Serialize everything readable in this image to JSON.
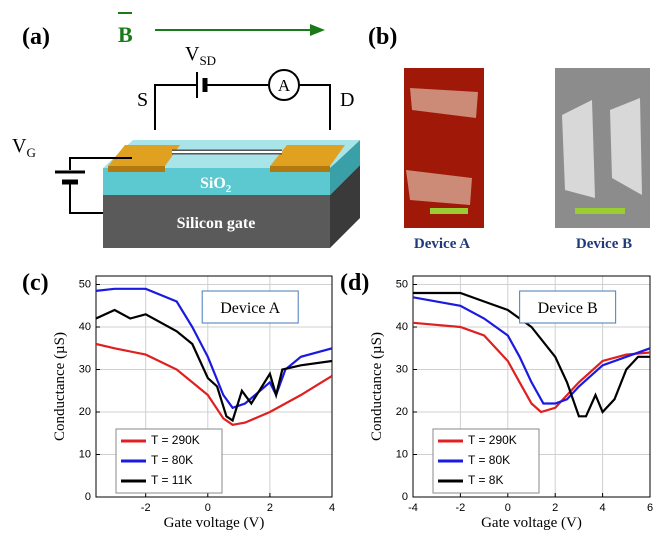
{
  "panel_labels": [
    "(a)",
    "(b)",
    "(c)",
    "(d)"
  ],
  "diagram": {
    "field": "B",
    "source_drain_voltage": {
      "main": "V",
      "sub": "SD"
    },
    "ammeter": "A",
    "source": "S",
    "drain": "D",
    "gate_voltage": {
      "main": "V",
      "sub": "G"
    },
    "oxide": {
      "main": "SiO",
      "sub": "2"
    },
    "substrate": "Silicon gate"
  },
  "images": [
    {
      "caption": "Device A"
    },
    {
      "caption": "Device B"
    }
  ],
  "chart_data": [
    {
      "type": "line",
      "annotation": "Device A",
      "x_label": "Gate voltage (V)",
      "y_label": "Conductance (µS)",
      "xlim": [
        -3.6,
        4
      ],
      "ylim": [
        0,
        52
      ],
      "xticks": [
        -2,
        0,
        2,
        4
      ],
      "yticks": [
        0,
        10,
        20,
        30,
        40,
        50
      ],
      "grid": true,
      "legend": "lower left",
      "series": [
        {
          "name": "T = 290K",
          "color": "#e02020",
          "x": [
            -3.6,
            -3,
            -2,
            -1,
            0,
            0.5,
            0.8,
            1.2,
            2,
            3,
            4
          ],
          "values": [
            36,
            35,
            33.5,
            30,
            24,
            18.5,
            17,
            17.5,
            20,
            24,
            28.5
          ]
        },
        {
          "name": "T = 80K",
          "color": "#1a1ae0",
          "x": [
            -3.6,
            -3,
            -2,
            -1,
            -0.5,
            0,
            0.5,
            0.8,
            1.2,
            2,
            2.2,
            2.5,
            3,
            4
          ],
          "values": [
            48.5,
            49,
            49,
            46,
            40,
            33,
            24,
            21,
            22,
            27,
            24,
            30,
            33,
            35
          ]
        },
        {
          "name": "T = 11K",
          "color": "#000000",
          "x": [
            -3.6,
            -3,
            -2.5,
            -2,
            -1,
            -0.5,
            0,
            0.3,
            0.6,
            0.8,
            1.1,
            1.4,
            2,
            2.2,
            2.4,
            3,
            4
          ],
          "values": [
            42,
            44,
            42,
            43,
            39,
            36,
            28,
            26,
            19,
            18,
            25,
            22,
            29,
            24,
            30,
            31,
            32
          ]
        }
      ]
    },
    {
      "type": "line",
      "annotation": "Device B",
      "x_label": "Gate voltage (V)",
      "y_label": "Conductance (µS)",
      "xlim": [
        -4,
        6
      ],
      "ylim": [
        0,
        52
      ],
      "xticks": [
        -4,
        -2,
        0,
        2,
        4,
        6
      ],
      "yticks": [
        0,
        10,
        20,
        30,
        40,
        50
      ],
      "grid": true,
      "legend": "lower left",
      "series": [
        {
          "name": "T = 290K",
          "color": "#e02020",
          "x": [
            -4,
            -2,
            -1,
            0,
            0.5,
            1,
            1.4,
            2,
            3,
            4,
            5,
            6
          ],
          "values": [
            41,
            40,
            38,
            32,
            27,
            22,
            20,
            21,
            27,
            32,
            33.5,
            34
          ]
        },
        {
          "name": "T = 80K",
          "color": "#1a1ae0",
          "x": [
            -4,
            -2,
            -1,
            0,
            0.5,
            1,
            1.5,
            2,
            2.5,
            3,
            4,
            5,
            6
          ],
          "values": [
            47,
            45,
            42,
            38,
            33,
            27,
            22,
            22,
            23,
            26,
            31,
            33,
            35
          ]
        },
        {
          "name": "T = 8K",
          "color": "#000000",
          "x": [
            -4,
            -2,
            -1,
            0,
            1,
            2,
            2.5,
            3,
            3.3,
            3.7,
            4,
            4.5,
            5,
            5.5,
            6
          ],
          "values": [
            48,
            48,
            46,
            44,
            40,
            33,
            27,
            19,
            19,
            24,
            20,
            23,
            30,
            33,
            33
          ]
        }
      ]
    }
  ]
}
